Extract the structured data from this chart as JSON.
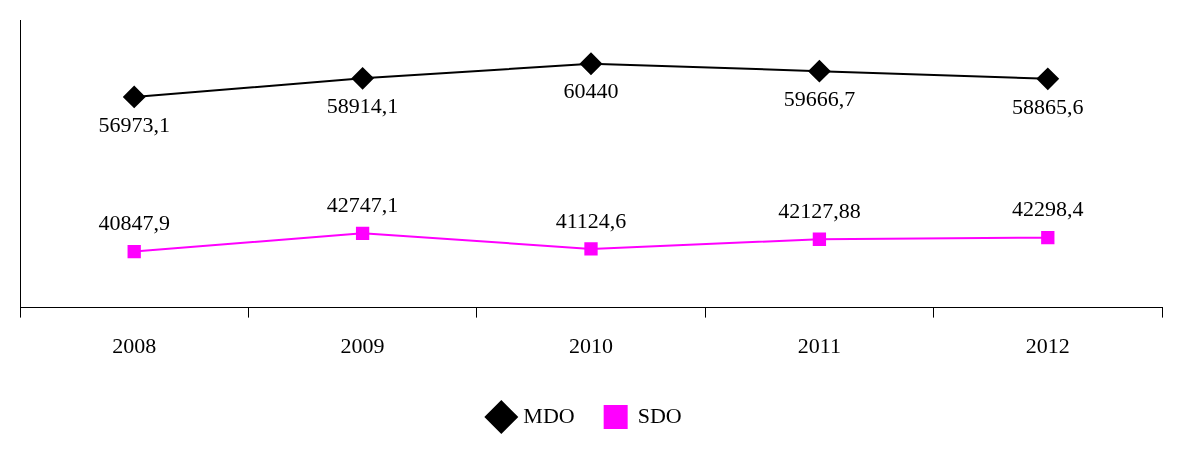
{
  "chart_data": {
    "type": "line",
    "categories": [
      "2008",
      "2009",
      "2010",
      "2011",
      "2012"
    ],
    "series": [
      {
        "name": "MDO",
        "color": "#000000",
        "marker": "diamond",
        "values": [
          56973.1,
          58914.1,
          60440,
          59666.7,
          58865.6
        ],
        "value_labels": [
          "56973,1",
          "58914,1",
          "60440",
          "59666,7",
          "58865,6"
        ]
      },
      {
        "name": "SDO",
        "color": "#ff00ff",
        "marker": "square",
        "values": [
          40847.9,
          42747.1,
          41124.6,
          42127.88,
          42298.4
        ],
        "value_labels": [
          "40847,9",
          "42747,1",
          "41124,6",
          "42127,88",
          "42298,4"
        ]
      }
    ],
    "tick_labels": "x",
    "legend": "bottom",
    "grid": false
  }
}
